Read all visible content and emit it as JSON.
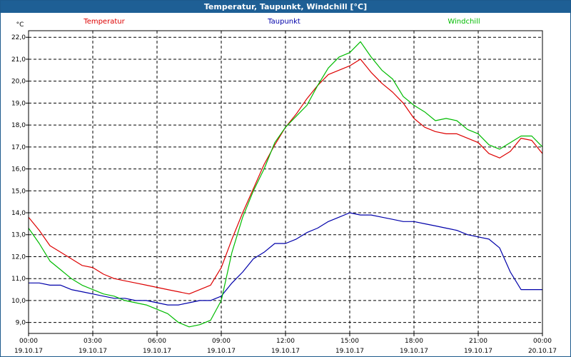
{
  "window": {
    "title": "Temperatur, Taupunkt, Windchill [°C]"
  },
  "chart_data": {
    "type": "line",
    "title": "Temperatur, Taupunkt, Windchill [°C]",
    "ylabel": "°C",
    "xlabel": "",
    "ylim": [
      8.5,
      22.3
    ],
    "y_ticks": [
      {
        "value": 9.0,
        "label": "9,0"
      },
      {
        "value": 10.0,
        "label": "10,0"
      },
      {
        "value": 11.0,
        "label": "11,0"
      },
      {
        "value": 12.0,
        "label": "12,0"
      },
      {
        "value": 13.0,
        "label": "13,0"
      },
      {
        "value": 14.0,
        "label": "14,0"
      },
      {
        "value": 15.0,
        "label": "15,0"
      },
      {
        "value": 16.0,
        "label": "16,0"
      },
      {
        "value": 17.0,
        "label": "17,0"
      },
      {
        "value": 18.0,
        "label": "18,0"
      },
      {
        "value": 19.0,
        "label": "19,0"
      },
      {
        "value": 20.0,
        "label": "20,0"
      },
      {
        "value": 21.0,
        "label": "21,0"
      },
      {
        "value": 22.0,
        "label": "22,0"
      }
    ],
    "x_ticks": [
      {
        "value": 0,
        "time": "00:00",
        "date": "19.10.17"
      },
      {
        "value": 3,
        "time": "03:00",
        "date": "19.10.17"
      },
      {
        "value": 6,
        "time": "06:00",
        "date": "19.10.17"
      },
      {
        "value": 9,
        "time": "09:00",
        "date": "19.10.17"
      },
      {
        "value": 12,
        "time": "12:00",
        "date": "19.10.17"
      },
      {
        "value": 15,
        "time": "15:00",
        "date": "19.10.17"
      },
      {
        "value": 18,
        "time": "18:00",
        "date": "19.10.17"
      },
      {
        "value": 21,
        "time": "21:00",
        "date": "19.10.17"
      },
      {
        "value": 24,
        "time": "00:00",
        "date": "20.10.17"
      }
    ],
    "xlim": [
      0,
      24
    ],
    "grid": true,
    "legend_position": "top",
    "x": [
      0,
      0.5,
      1,
      1.5,
      2,
      2.5,
      3,
      3.5,
      4,
      4.5,
      5,
      5.5,
      6,
      6.5,
      7,
      7.5,
      8,
      8.5,
      9,
      9.5,
      10,
      10.5,
      11,
      11.5,
      12,
      12.5,
      13,
      13.5,
      14,
      14.5,
      15,
      15.5,
      16,
      16.5,
      17,
      17.5,
      18,
      18.5,
      19,
      19.5,
      20,
      20.5,
      21,
      21.5,
      22,
      22.5,
      23,
      23.5,
      24
    ],
    "series": [
      {
        "name": "Temperatur",
        "color": "#dd0000",
        "values": [
          13.8,
          13.2,
          12.5,
          12.2,
          11.9,
          11.6,
          11.5,
          11.2,
          11.0,
          10.9,
          10.8,
          10.7,
          10.6,
          10.5,
          10.4,
          10.3,
          10.5,
          10.7,
          11.5,
          12.8,
          14.0,
          15.1,
          16.2,
          17.1,
          17.9,
          18.5,
          19.2,
          19.8,
          20.3,
          20.5,
          20.7,
          21.0,
          20.4,
          19.9,
          19.5,
          19.0,
          18.3,
          17.9,
          17.7,
          17.6,
          17.6,
          17.4,
          17.2,
          16.7,
          16.5,
          16.8,
          17.4,
          17.3,
          16.7
        ]
      },
      {
        "name": "Taupunkt",
        "color": "#0000aa",
        "values": [
          10.8,
          10.8,
          10.7,
          10.7,
          10.5,
          10.4,
          10.3,
          10.2,
          10.1,
          10.1,
          10.0,
          10.0,
          9.9,
          9.8,
          9.8,
          9.9,
          10.0,
          10.0,
          10.2,
          10.8,
          11.3,
          11.9,
          12.2,
          12.6,
          12.6,
          12.8,
          13.1,
          13.3,
          13.6,
          13.8,
          14.0,
          13.9,
          13.9,
          13.8,
          13.7,
          13.6,
          13.6,
          13.5,
          13.4,
          13.3,
          13.2,
          13.0,
          12.9,
          12.8,
          12.4,
          11.3,
          10.5,
          10.5,
          10.5
        ]
      },
      {
        "name": "Windchill",
        "color": "#00bb00",
        "values": [
          13.3,
          12.6,
          11.8,
          11.4,
          11.0,
          10.7,
          10.5,
          10.3,
          10.2,
          10.0,
          9.9,
          9.8,
          9.6,
          9.4,
          9.0,
          8.8,
          8.9,
          9.1,
          10.0,
          12.2,
          13.8,
          15.0,
          16.0,
          17.2,
          17.9,
          18.4,
          18.9,
          19.8,
          20.6,
          21.1,
          21.3,
          21.8,
          21.1,
          20.5,
          20.1,
          19.3,
          18.9,
          18.6,
          18.2,
          18.3,
          18.2,
          17.8,
          17.6,
          17.1,
          16.9,
          17.2,
          17.5,
          17.5,
          17.0
        ]
      }
    ]
  }
}
